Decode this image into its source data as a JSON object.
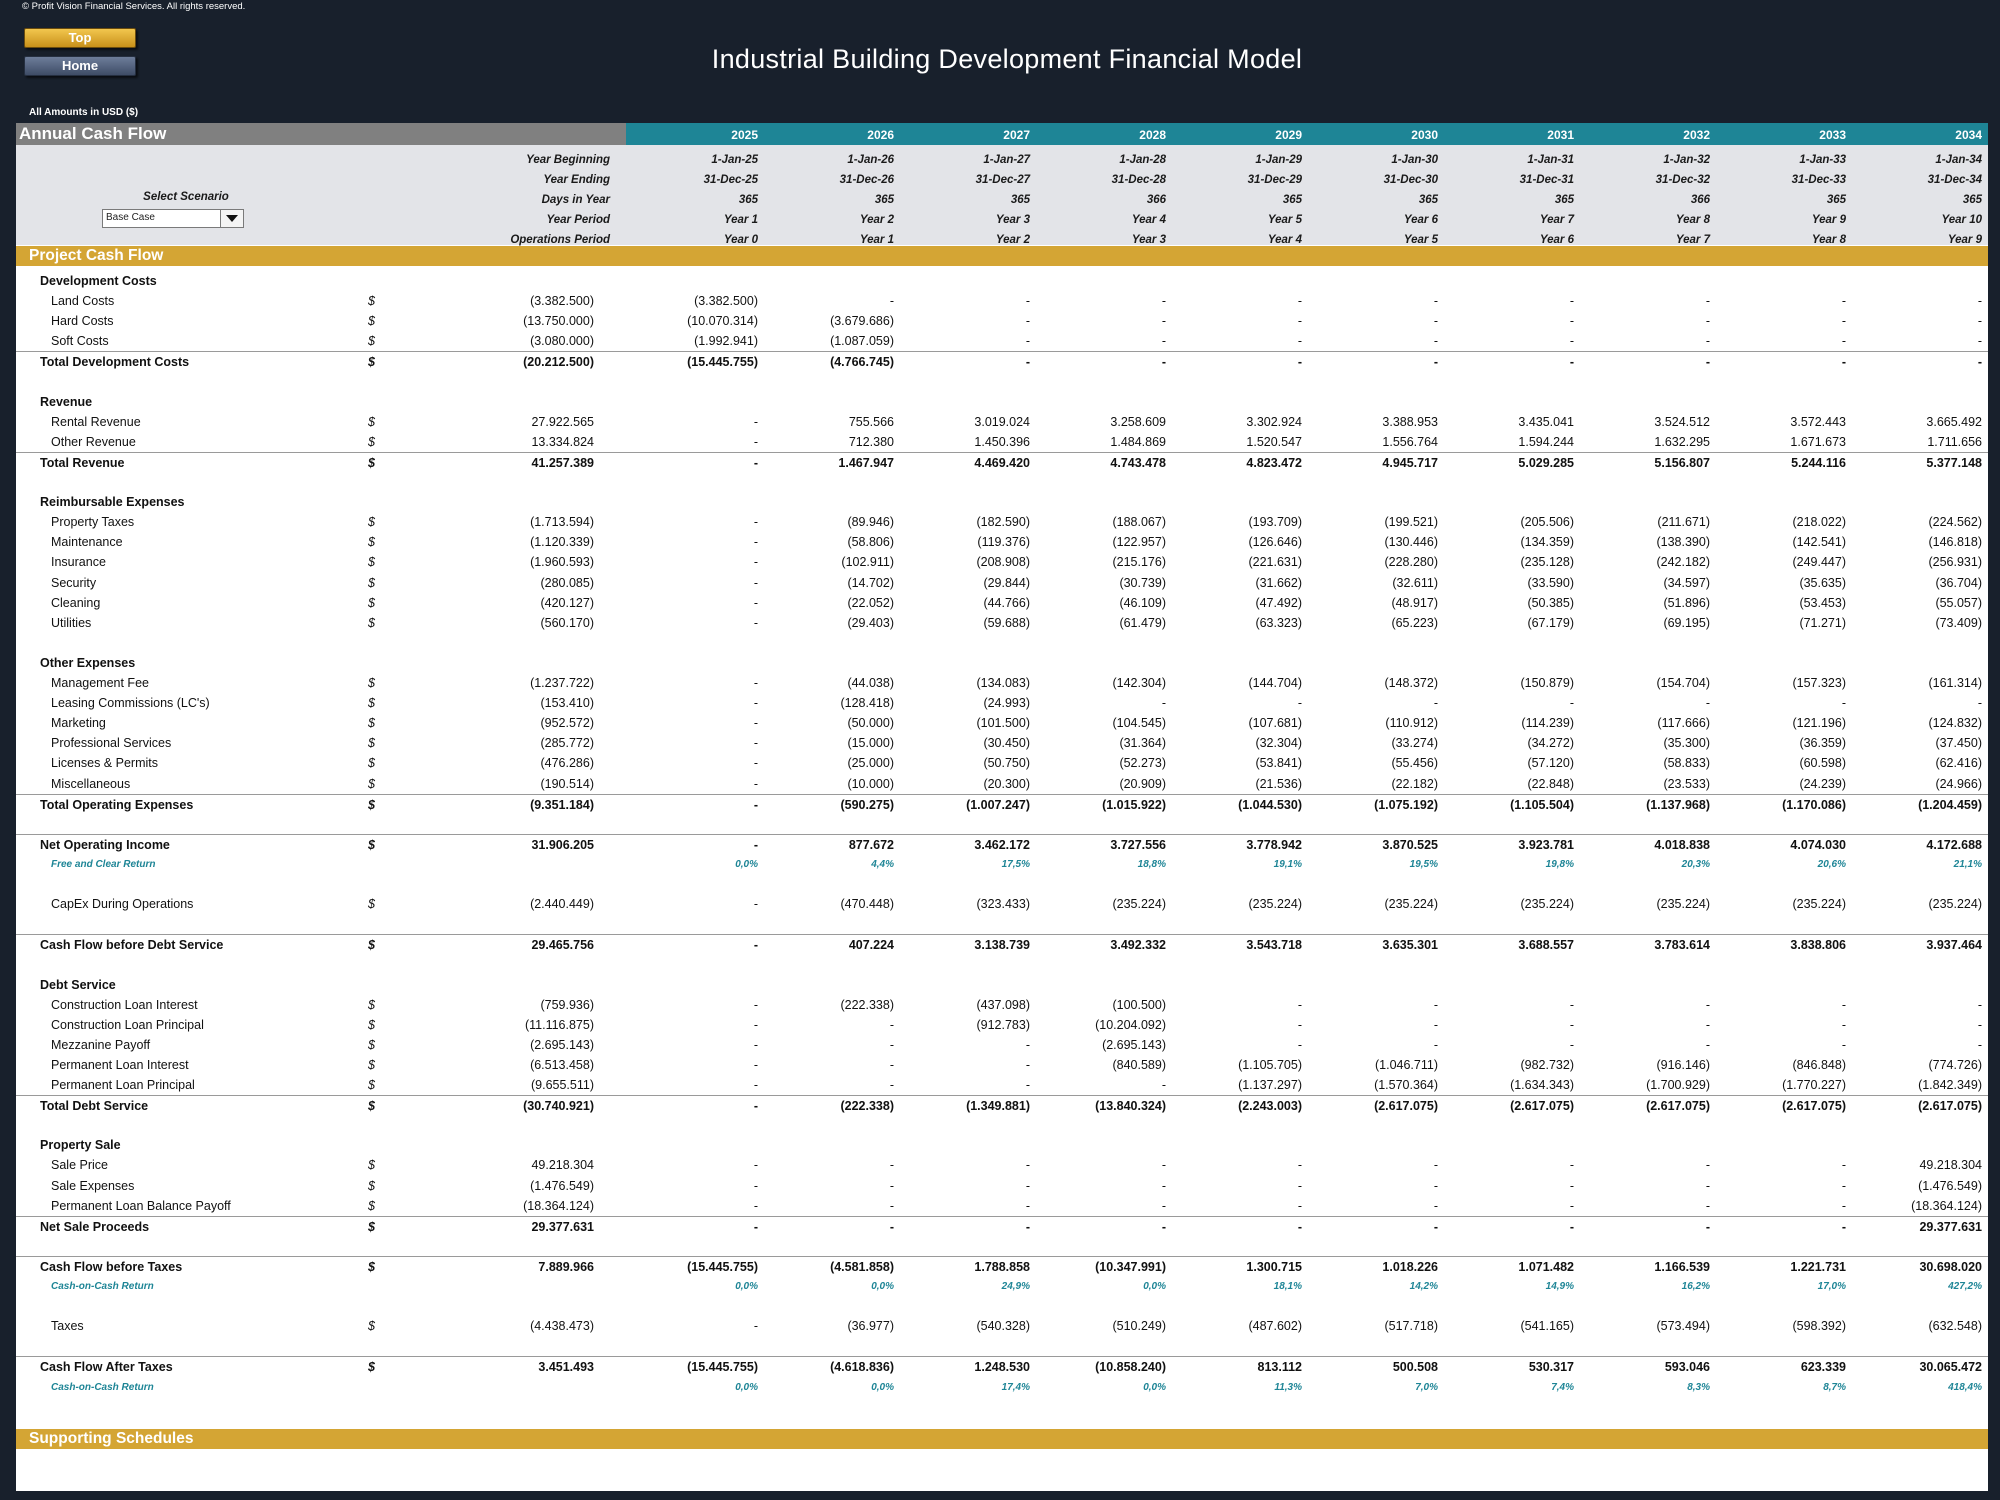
{
  "copyright": "© Profit Vision Financial Services. All rights reserved.",
  "nav": {
    "top": "Top",
    "home": "Home"
  },
  "title": "Industrial Building Development Financial Model",
  "currency": "All Amounts in  USD ($)",
  "header": {
    "title": "Annual Cash Flow",
    "years": [
      "2025",
      "2026",
      "2027",
      "2028",
      "2029",
      "2030",
      "2031",
      "2032",
      "2033",
      "2034"
    ]
  },
  "scenario": {
    "label": "Select Scenario",
    "value": "Base Case"
  },
  "info_rows": [
    {
      "label": "Year Beginning",
      "values": [
        "1-Jan-25",
        "1-Jan-26",
        "1-Jan-27",
        "1-Jan-28",
        "1-Jan-29",
        "1-Jan-30",
        "1-Jan-31",
        "1-Jan-32",
        "1-Jan-33",
        "1-Jan-34"
      ]
    },
    {
      "label": "Year Ending",
      "values": [
        "31-Dec-25",
        "31-Dec-26",
        "31-Dec-27",
        "31-Dec-28",
        "31-Dec-29",
        "31-Dec-30",
        "31-Dec-31",
        "31-Dec-32",
        "31-Dec-33",
        "31-Dec-34"
      ]
    },
    {
      "label": "Days in Year",
      "values": [
        "365",
        "365",
        "365",
        "366",
        "365",
        "365",
        "365",
        "366",
        "365",
        "365"
      ]
    },
    {
      "label": "Year Period",
      "values": [
        "Year 1",
        "Year 2",
        "Year 3",
        "Year 4",
        "Year 5",
        "Year 6",
        "Year 7",
        "Year 8",
        "Year 9",
        "Year 10"
      ]
    },
    {
      "label": "Operations Period",
      "values": [
        "Year 0",
        "Year 1",
        "Year 2",
        "Year 3",
        "Year 4",
        "Year 5",
        "Year 6",
        "Year 7",
        "Year 8",
        "Year 9"
      ]
    }
  ],
  "sections": {
    "project_cash_flow": "Project Cash Flow",
    "supporting_schedules": "Supporting Schedules"
  },
  "rows": [
    {
      "type": "hdr",
      "label": "Development Costs"
    },
    {
      "type": "item",
      "label": "Land Costs",
      "unit": "$",
      "total": "(3.382.500)",
      "values": [
        "(3.382.500)",
        "-",
        "-",
        "-",
        "-",
        "-",
        "-",
        "-",
        "-",
        "-"
      ]
    },
    {
      "type": "item",
      "label": "Hard Costs",
      "unit": "$",
      "total": "(13.750.000)",
      "values": [
        "(10.070.314)",
        "(3.679.686)",
        "-",
        "-",
        "-",
        "-",
        "-",
        "-",
        "-",
        "-"
      ]
    },
    {
      "type": "item",
      "label": "Soft Costs",
      "unit": "$",
      "total": "(3.080.000)",
      "values": [
        "(1.992.941)",
        "(1.087.059)",
        "-",
        "-",
        "-",
        "-",
        "-",
        "-",
        "-",
        "-"
      ]
    },
    {
      "type": "total",
      "label": "Total Development Costs",
      "unit": "$",
      "total": "(20.212.500)",
      "values": [
        "(15.445.755)",
        "(4.766.745)",
        "-",
        "-",
        "-",
        "-",
        "-",
        "-",
        "-",
        "-"
      ]
    },
    {
      "type": "spacer"
    },
    {
      "type": "hdr",
      "label": "Revenue"
    },
    {
      "type": "item",
      "label": "Rental Revenue",
      "unit": "$",
      "total": "27.922.565",
      "values": [
        "-",
        "755.566",
        "3.019.024",
        "3.258.609",
        "3.302.924",
        "3.388.953",
        "3.435.041",
        "3.524.512",
        "3.572.443",
        "3.665.492"
      ]
    },
    {
      "type": "item",
      "label": "Other Revenue",
      "unit": "$",
      "total": "13.334.824",
      "values": [
        "-",
        "712.380",
        "1.450.396",
        "1.484.869",
        "1.520.547",
        "1.556.764",
        "1.594.244",
        "1.632.295",
        "1.671.673",
        "1.711.656"
      ]
    },
    {
      "type": "total",
      "label": "Total Revenue",
      "unit": "$",
      "total": "41.257.389",
      "values": [
        "-",
        "1.467.947",
        "4.469.420",
        "4.743.478",
        "4.823.472",
        "4.945.717",
        "5.029.285",
        "5.156.807",
        "5.244.116",
        "5.377.148"
      ]
    },
    {
      "type": "spacer"
    },
    {
      "type": "hdr",
      "label": "Reimbursable Expenses"
    },
    {
      "type": "item",
      "label": "Property Taxes",
      "unit": "$",
      "total": "(1.713.594)",
      "values": [
        "-",
        "(89.946)",
        "(182.590)",
        "(188.067)",
        "(193.709)",
        "(199.521)",
        "(205.506)",
        "(211.671)",
        "(218.022)",
        "(224.562)"
      ]
    },
    {
      "type": "item",
      "label": "Maintenance",
      "unit": "$",
      "total": "(1.120.339)",
      "values": [
        "-",
        "(58.806)",
        "(119.376)",
        "(122.957)",
        "(126.646)",
        "(130.446)",
        "(134.359)",
        "(138.390)",
        "(142.541)",
        "(146.818)"
      ]
    },
    {
      "type": "item",
      "label": "Insurance",
      "unit": "$",
      "total": "(1.960.593)",
      "values": [
        "-",
        "(102.911)",
        "(208.908)",
        "(215.176)",
        "(221.631)",
        "(228.280)",
        "(235.128)",
        "(242.182)",
        "(249.447)",
        "(256.931)"
      ]
    },
    {
      "type": "item",
      "label": "Security",
      "unit": "$",
      "total": "(280.085)",
      "values": [
        "-",
        "(14.702)",
        "(29.844)",
        "(30.739)",
        "(31.662)",
        "(32.611)",
        "(33.590)",
        "(34.597)",
        "(35.635)",
        "(36.704)"
      ]
    },
    {
      "type": "item",
      "label": "Cleaning",
      "unit": "$",
      "total": "(420.127)",
      "values": [
        "-",
        "(22.052)",
        "(44.766)",
        "(46.109)",
        "(47.492)",
        "(48.917)",
        "(50.385)",
        "(51.896)",
        "(53.453)",
        "(55.057)"
      ]
    },
    {
      "type": "item",
      "label": "Utilities",
      "unit": "$",
      "total": "(560.170)",
      "values": [
        "-",
        "(29.403)",
        "(59.688)",
        "(61.479)",
        "(63.323)",
        "(65.223)",
        "(67.179)",
        "(69.195)",
        "(71.271)",
        "(73.409)"
      ]
    },
    {
      "type": "spacer"
    },
    {
      "type": "hdr",
      "label": "Other Expenses"
    },
    {
      "type": "item",
      "label": "Management Fee",
      "unit": "$",
      "total": "(1.237.722)",
      "values": [
        "-",
        "(44.038)",
        "(134.083)",
        "(142.304)",
        "(144.704)",
        "(148.372)",
        "(150.879)",
        "(154.704)",
        "(157.323)",
        "(161.314)"
      ]
    },
    {
      "type": "item",
      "label": "Leasing Commissions (LC's)",
      "unit": "$",
      "total": "(153.410)",
      "values": [
        "-",
        "(128.418)",
        "(24.993)",
        "-",
        "-",
        "-",
        "-",
        "-",
        "-",
        "-"
      ]
    },
    {
      "type": "item",
      "label": "Marketing",
      "unit": "$",
      "total": "(952.572)",
      "values": [
        "-",
        "(50.000)",
        "(101.500)",
        "(104.545)",
        "(107.681)",
        "(110.912)",
        "(114.239)",
        "(117.666)",
        "(121.196)",
        "(124.832)"
      ]
    },
    {
      "type": "item",
      "label": "Professional Services",
      "unit": "$",
      "total": "(285.772)",
      "values": [
        "-",
        "(15.000)",
        "(30.450)",
        "(31.364)",
        "(32.304)",
        "(33.274)",
        "(34.272)",
        "(35.300)",
        "(36.359)",
        "(37.450)"
      ]
    },
    {
      "type": "item",
      "label": "Licenses & Permits",
      "unit": "$",
      "total": "(476.286)",
      "values": [
        "-",
        "(25.000)",
        "(50.750)",
        "(52.273)",
        "(53.841)",
        "(55.456)",
        "(57.120)",
        "(58.833)",
        "(60.598)",
        "(62.416)"
      ]
    },
    {
      "type": "item",
      "label": "Miscellaneous",
      "unit": "$",
      "total": "(190.514)",
      "values": [
        "-",
        "(10.000)",
        "(20.300)",
        "(20.909)",
        "(21.536)",
        "(22.182)",
        "(22.848)",
        "(23.533)",
        "(24.239)",
        "(24.966)"
      ]
    },
    {
      "type": "total",
      "label": "Total Operating Expenses",
      "unit": "$",
      "total": "(9.351.184)",
      "values": [
        "-",
        "(590.275)",
        "(1.007.247)",
        "(1.015.922)",
        "(1.044.530)",
        "(1.075.192)",
        "(1.105.504)",
        "(1.137.968)",
        "(1.170.086)",
        "(1.204.459)"
      ]
    },
    {
      "type": "spacer"
    },
    {
      "type": "total",
      "label": "Net Operating Income",
      "unit": "$",
      "total": "31.906.205",
      "values": [
        "-",
        "877.672",
        "3.462.172",
        "3.727.556",
        "3.778.942",
        "3.870.525",
        "3.923.781",
        "4.018.838",
        "4.074.030",
        "4.172.688"
      ]
    },
    {
      "type": "pct",
      "label": "Free and Clear Return",
      "values": [
        "0,0%",
        "4,4%",
        "17,5%",
        "18,8%",
        "19,1%",
        "19,5%",
        "19,8%",
        "20,3%",
        "20,6%",
        "21,1%"
      ]
    },
    {
      "type": "spacer"
    },
    {
      "type": "item",
      "label": "CapEx During Operations",
      "unit": "$",
      "total": "(2.440.449)",
      "values": [
        "-",
        "(470.448)",
        "(323.433)",
        "(235.224)",
        "(235.224)",
        "(235.224)",
        "(235.224)",
        "(235.224)",
        "(235.224)",
        "(235.224)"
      ]
    },
    {
      "type": "spacer"
    },
    {
      "type": "total",
      "label": "Cash Flow before Debt Service",
      "unit": "$",
      "total": "29.465.756",
      "values": [
        "-",
        "407.224",
        "3.138.739",
        "3.492.332",
        "3.543.718",
        "3.635.301",
        "3.688.557",
        "3.783.614",
        "3.838.806",
        "3.937.464"
      ]
    },
    {
      "type": "spacer"
    },
    {
      "type": "hdr",
      "label": "Debt Service"
    },
    {
      "type": "item",
      "label": "Construction Loan Interest",
      "unit": "$",
      "total": "(759.936)",
      "values": [
        "-",
        "(222.338)",
        "(437.098)",
        "(100.500)",
        "-",
        "-",
        "-",
        "-",
        "-",
        "-"
      ]
    },
    {
      "type": "item",
      "label": "Construction Loan Principal",
      "unit": "$",
      "total": "(11.116.875)",
      "values": [
        "-",
        "-",
        "(912.783)",
        "(10.204.092)",
        "-",
        "-",
        "-",
        "-",
        "-",
        "-"
      ]
    },
    {
      "type": "item",
      "label": "Mezzanine Payoff",
      "unit": "$",
      "total": "(2.695.143)",
      "values": [
        "-",
        "-",
        "-",
        "(2.695.143)",
        "-",
        "-",
        "-",
        "-",
        "-",
        "-"
      ]
    },
    {
      "type": "item",
      "label": "Permanent Loan Interest",
      "unit": "$",
      "total": "(6.513.458)",
      "values": [
        "-",
        "-",
        "-",
        "(840.589)",
        "(1.105.705)",
        "(1.046.711)",
        "(982.732)",
        "(916.146)",
        "(846.848)",
        "(774.726)"
      ]
    },
    {
      "type": "item",
      "label": "Permanent Loan Principal",
      "unit": "$",
      "total": "(9.655.511)",
      "values": [
        "-",
        "-",
        "-",
        "-",
        "(1.137.297)",
        "(1.570.364)",
        "(1.634.343)",
        "(1.700.929)",
        "(1.770.227)",
        "(1.842.349)"
      ]
    },
    {
      "type": "total",
      "label": "Total Debt Service",
      "unit": "$",
      "total": "(30.740.921)",
      "values": [
        "-",
        "(222.338)",
        "(1.349.881)",
        "(13.840.324)",
        "(2.243.003)",
        "(2.617.075)",
        "(2.617.075)",
        "(2.617.075)",
        "(2.617.075)",
        "(2.617.075)"
      ]
    },
    {
      "type": "spacer"
    },
    {
      "type": "hdr",
      "label": "Property Sale"
    },
    {
      "type": "item",
      "label": "Sale Price",
      "unit": "$",
      "total": "49.218.304",
      "values": [
        "-",
        "-",
        "-",
        "-",
        "-",
        "-",
        "-",
        "-",
        "-",
        "49.218.304"
      ]
    },
    {
      "type": "item",
      "label": "Sale Expenses",
      "unit": "$",
      "total": "(1.476.549)",
      "values": [
        "-",
        "-",
        "-",
        "-",
        "-",
        "-",
        "-",
        "-",
        "-",
        "(1.476.549)"
      ]
    },
    {
      "type": "item",
      "label": "Permanent Loan Balance Payoff",
      "unit": "$",
      "total": "(18.364.124)",
      "values": [
        "-",
        "-",
        "-",
        "-",
        "-",
        "-",
        "-",
        "-",
        "-",
        "(18.364.124)"
      ]
    },
    {
      "type": "total",
      "label": "Net Sale Proceeds",
      "unit": "$",
      "total": "29.377.631",
      "values": [
        "-",
        "-",
        "-",
        "-",
        "-",
        "-",
        "-",
        "-",
        "-",
        "29.377.631"
      ]
    },
    {
      "type": "spacer"
    },
    {
      "type": "total",
      "label": "Cash Flow before Taxes",
      "unit": "$",
      "total": "7.889.966",
      "values": [
        "(15.445.755)",
        "(4.581.858)",
        "1.788.858",
        "(10.347.991)",
        "1.300.715",
        "1.018.226",
        "1.071.482",
        "1.166.539",
        "1.221.731",
        "30.698.020"
      ]
    },
    {
      "type": "pct",
      "label": "Cash-on-Cash Return",
      "values": [
        "0,0%",
        "0,0%",
        "24,9%",
        "0,0%",
        "18,1%",
        "14,2%",
        "14,9%",
        "16,2%",
        "17,0%",
        "427,2%"
      ]
    },
    {
      "type": "spacer"
    },
    {
      "type": "item",
      "label": "Taxes",
      "unit": "$",
      "total": "(4.438.473)",
      "values": [
        "-",
        "(36.977)",
        "(540.328)",
        "(510.249)",
        "(487.602)",
        "(517.718)",
        "(541.165)",
        "(573.494)",
        "(598.392)",
        "(632.548)"
      ]
    },
    {
      "type": "spacer"
    },
    {
      "type": "total",
      "label": "Cash Flow After Taxes",
      "unit": "$",
      "total": "3.451.493",
      "values": [
        "(15.445.755)",
        "(4.618.836)",
        "1.248.530",
        "(10.858.240)",
        "813.112",
        "500.508",
        "530.317",
        "593.046",
        "623.339",
        "30.065.472"
      ]
    },
    {
      "type": "pct",
      "label": "Cash-on-Cash Return",
      "values": [
        "0,0%",
        "0,0%",
        "17,4%",
        "0,0%",
        "11,3%",
        "7,0%",
        "7,4%",
        "8,3%",
        "8,7%",
        "418,4%"
      ]
    }
  ]
}
